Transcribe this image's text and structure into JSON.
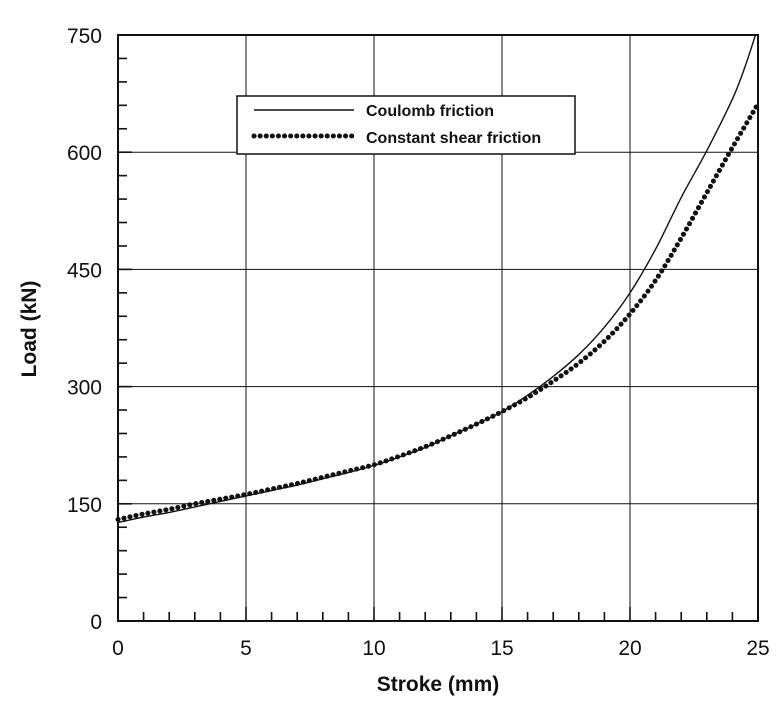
{
  "chart_data": {
    "type": "line",
    "title": "",
    "xlabel": "Stroke (mm)",
    "ylabel": "Load (kN)",
    "xlim": [
      0,
      25
    ],
    "ylim": [
      0,
      750
    ],
    "x_ticks": [
      "0",
      "5",
      "10",
      "15",
      "20",
      "25"
    ],
    "y_ticks": [
      "0",
      "150",
      "300",
      "450",
      "600",
      "750"
    ],
    "grid": true,
    "legend_position": "top-center",
    "series": [
      {
        "name": "Coulomb friction",
        "style": "solid",
        "color": "#111111",
        "x": [
          0,
          1,
          2,
          3,
          4,
          5,
          6,
          7,
          8,
          9,
          10,
          11,
          12,
          13,
          14,
          15,
          16,
          17,
          18,
          19,
          20,
          21,
          22,
          23,
          24,
          24.5,
          24.9
        ],
        "y": [
          126,
          133,
          139,
          146,
          153,
          160,
          167,
          174,
          182,
          190,
          199,
          210,
          222,
          237,
          252,
          268,
          289,
          313,
          341,
          376,
          420,
          476,
          542,
          602,
          668,
          710,
          750
        ]
      },
      {
        "name": "Constant shear friction",
        "style": "dotted",
        "color": "#111111",
        "x": [
          0,
          1,
          2,
          3,
          4,
          5,
          6,
          7,
          8,
          9,
          10,
          11,
          12,
          13,
          14,
          15,
          16,
          17,
          18,
          19,
          20,
          21,
          22,
          23,
          24,
          25
        ],
        "y": [
          130,
          137,
          143,
          150,
          156,
          162,
          169,
          176,
          184,
          192,
          200,
          211,
          223,
          237,
          252,
          268,
          286,
          307,
          330,
          358,
          393,
          436,
          490,
          548,
          606,
          662
        ]
      }
    ]
  }
}
